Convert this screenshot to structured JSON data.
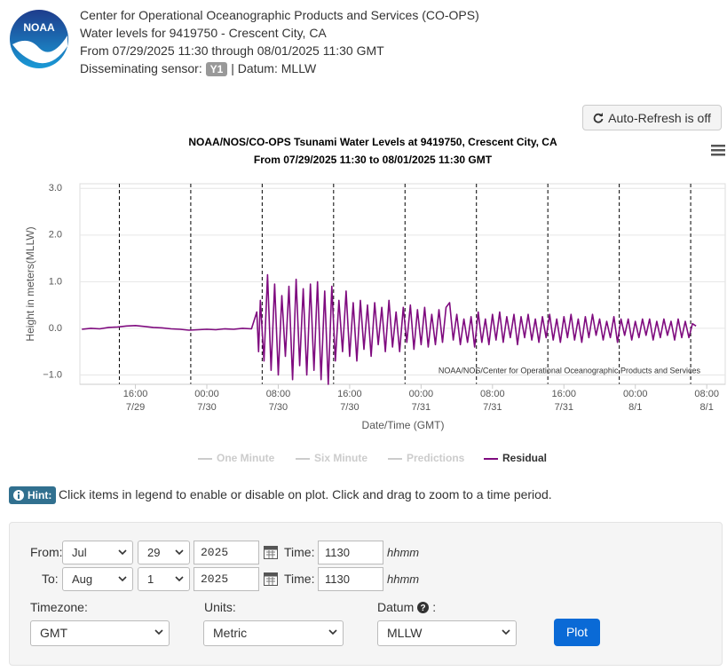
{
  "header": {
    "logo": "NOAA",
    "lines": [
      "Center for Operational Oceanographic Products and Services (CO-OPS)",
      "Water levels for 9419750 - Crescent City, CA",
      "From 07/29/2025 11:30 through 08/01/2025 11:30 GMT"
    ],
    "sensor_label": "Disseminating sensor:",
    "sensor": "Y1",
    "datum_text": "| Datum: MLLW"
  },
  "auto_refresh": "Auto-Refresh is off",
  "chart_data": {
    "type": "line",
    "title": "NOAA/NOS/CO-OPS Tsunami Water Levels at 9419750, Crescent City, CA",
    "subtitle": "From 07/29/2025 11:30 to 08/01/2025 11:30 GMT",
    "y_label": "Height in meters(MLLW)",
    "x_label": "Date/Time (GMT)",
    "credit": "NOAA/NOS/Center for Operational Oceanographic Products and Services",
    "xlim": [
      9.78,
      82.07
    ],
    "ylim": [
      -1.2,
      3.1
    ],
    "yticks": [
      {
        "value": -1,
        "label": "−1.0"
      },
      {
        "value": 0,
        "label": "0.0"
      },
      {
        "value": 1,
        "label": "1.0"
      },
      {
        "value": 2,
        "label": "2.0"
      },
      {
        "value": 3,
        "label": "3.0"
      }
    ],
    "xticks": [
      {
        "value": 16,
        "label": "16:00",
        "sublabel": "7/29"
      },
      {
        "value": 24,
        "label": "00:00",
        "sublabel": "7/30"
      },
      {
        "value": 32,
        "label": "08:00",
        "sublabel": "7/30"
      },
      {
        "value": 40,
        "label": "16:00",
        "sublabel": "7/30"
      },
      {
        "value": 48,
        "label": "00:00",
        "sublabel": "7/31"
      },
      {
        "value": 56,
        "label": "08:00",
        "sublabel": "7/31"
      },
      {
        "value": 64,
        "label": "16:00",
        "sublabel": "7/31"
      },
      {
        "value": 72,
        "label": "00:00",
        "sublabel": "8/1"
      },
      {
        "value": 80,
        "label": "08:00",
        "sublabel": "8/1"
      }
    ],
    "vlines": [
      14.2,
      22.2,
      30.2,
      38.2,
      46.2,
      54.2,
      62.2,
      70.2,
      78.2
    ],
    "grid": true,
    "x": [
      10,
      11,
      12,
      13,
      14,
      15,
      16,
      17,
      18,
      19,
      20,
      21,
      22,
      23,
      24,
      25,
      26,
      27,
      28,
      29,
      29.6,
      29.8,
      30,
      30.4,
      30.8,
      31.2,
      31.6,
      32,
      32.4,
      32.8,
      33.2,
      33.6,
      34,
      34.4,
      34.8,
      35.2,
      35.6,
      36,
      36.4,
      36.8,
      37.2,
      37.6,
      38,
      38.4,
      38.8,
      39.2,
      39.6,
      40,
      40.4,
      40.8,
      41.2,
      41.6,
      42,
      42.4,
      42.8,
      43.2,
      43.6,
      44,
      44.4,
      44.8,
      45.2,
      45.6,
      46,
      46.4,
      46.8,
      47.2,
      47.6,
      48,
      48.4,
      48.8,
      49.2,
      49.6,
      50,
      50.4,
      50.8,
      51.2,
      51.6,
      52,
      52.4,
      52.8,
      53.2,
      53.6,
      54,
      54.4,
      54.8,
      55.2,
      55.6,
      56,
      56.4,
      56.8,
      57.2,
      57.6,
      58,
      58.4,
      58.8,
      59.2,
      59.6,
      60,
      60.4,
      60.8,
      61.2,
      61.6,
      62,
      62.4,
      62.8,
      63.2,
      63.6,
      64,
      64.4,
      64.8,
      65.2,
      65.6,
      66,
      66.4,
      66.8,
      67.2,
      67.6,
      68,
      68.4,
      68.8,
      69.2,
      69.6,
      70,
      70.4,
      70.8,
      71.2,
      71.6,
      72,
      72.4,
      72.8,
      73.2,
      73.6,
      74,
      74.4,
      74.8,
      75.2,
      75.6,
      76,
      76.4,
      76.8,
      77.2,
      77.6,
      78,
      78.4,
      78.8
    ],
    "series": [
      {
        "name": "One Minute",
        "visible": false
      },
      {
        "name": "Six Minute",
        "visible": false
      },
      {
        "name": "Predictions",
        "visible": false
      },
      {
        "name": "Residual",
        "visible": true,
        "color": "#7f0b7f",
        "values": [
          -0.02,
          0,
          -0.01,
          0.02,
          0.03,
          0.05,
          0.06,
          0.04,
          0.02,
          0.01,
          -0.01,
          -0.02,
          -0.04,
          -0.03,
          -0.02,
          -0.03,
          -0.01,
          -0.02,
          0,
          -0.01,
          0.35,
          -0.5,
          0.6,
          -0.7,
          1.15,
          -0.9,
          0.95,
          -1.0,
          0.7,
          -0.6,
          0.9,
          -1.1,
          1.05,
          -0.8,
          0.85,
          -1.0,
          0.95,
          -0.9,
          1.0,
          -1.1,
          0.8,
          -1.2,
          0.9,
          -0.7,
          0.6,
          -0.5,
          0.8,
          -0.6,
          0.55,
          -0.7,
          0.6,
          -0.45,
          0.5,
          -0.6,
          0.55,
          -0.35,
          0.45,
          -0.5,
          0.6,
          -0.4,
          0.35,
          -0.5,
          0.45,
          -0.3,
          0.5,
          -0.45,
          0.4,
          -0.35,
          0.45,
          -0.4,
          0.3,
          -0.35,
          0.4,
          -0.3,
          0.45,
          0.55,
          -0.25,
          0.3,
          -0.35,
          0.2,
          -0.3,
          0.25,
          -0.4,
          0.35,
          -0.3,
          0.2,
          -0.35,
          0.3,
          -0.25,
          0.35,
          -0.3,
          0.25,
          -0.2,
          0.3,
          -0.35,
          0.25,
          -0.2,
          0.3,
          -0.25,
          0.2,
          -0.3,
          0.25,
          -0.2,
          0.3,
          -0.25,
          0.2,
          -0.3,
          0.25,
          -0.2,
          0.3,
          -0.25,
          0.2,
          -0.3,
          0.25,
          -0.2,
          0.3,
          -0.15,
          0.2,
          -0.25,
          0.15,
          -0.2,
          0.25,
          -0.3,
          0.2,
          -0.15,
          0.2,
          -0.25,
          0.15,
          -0.2,
          0.2,
          -0.15,
          0.2,
          -0.25,
          0.15,
          -0.2,
          0.2,
          -0.15,
          0.15,
          -0.25,
          0.2,
          -0.2,
          0.15,
          -0.2,
          0.1,
          0.05
        ]
      }
    ]
  },
  "hint": {
    "label": "Hint:",
    "text": "Click items in legend to enable or disable on plot. Click and drag to zoom to a time period."
  },
  "form": {
    "from_label": "From:",
    "to_label": "To:",
    "time_label": "Time:",
    "time_hint": "hhmm",
    "from": {
      "month": "Jul",
      "day": "29",
      "year": "2025",
      "time": "1130"
    },
    "to": {
      "month": "Aug",
      "day": "1",
      "year": "2025",
      "time": "1130"
    },
    "timezone_label": "Timezone:",
    "timezone": "GMT",
    "units_label": "Units:",
    "units": "Metric",
    "datum_label": "Datum",
    "datum_suffix": ":",
    "datum": "MLLW",
    "plot_button": "Plot"
  }
}
